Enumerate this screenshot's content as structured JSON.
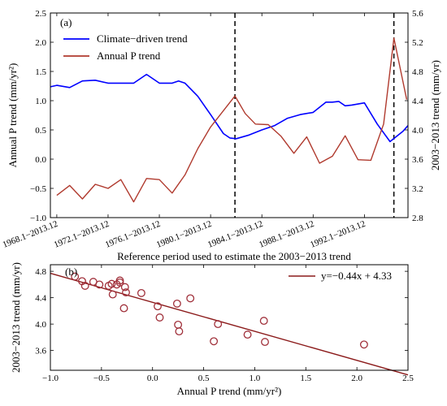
{
  "chart_data": [
    {
      "panel_label": "(a)",
      "type": "line",
      "xlabel": "Reference period used to estimate the 2003−2013 trend",
      "ylabel_left": "Annual P trend (mm/yr²)",
      "ylabel_right": "2003−2013 trend (mm/yr)",
      "ylim_left": [
        -1.0,
        2.5
      ],
      "ylim_right": [
        2.8,
        5.6
      ],
      "yticks_left": [
        "−1.0",
        "−0.5",
        "0.0",
        "0.5",
        "1.0",
        "1.5",
        "2.0",
        "2.5"
      ],
      "yticks_right": [
        "2.8",
        "3.2",
        "3.6",
        "4.0",
        "4.4",
        "4.8",
        "5.2",
        "5.6"
      ],
      "xlim": [
        1967.5,
        1995.4
      ],
      "xticks": [
        {
          "x": 1968,
          "label": "1968.1−2013.12"
        },
        {
          "x": 1972,
          "label": "1972.1−2013.12"
        },
        {
          "x": 1976,
          "label": "1976.1−2013.12"
        },
        {
          "x": 1980,
          "label": "1980.1−2013.12"
        },
        {
          "x": 1984,
          "label": "1984.1−2013.12"
        },
        {
          "x": 1988,
          "label": "1988.1−2013.12"
        },
        {
          "x": 1992,
          "label": "1992.1−2013.12"
        }
      ],
      "vlines": [
        1981.9,
        1994.3
      ],
      "legend_position": "upper-left",
      "series": [
        {
          "name": "Climate−driven trend",
          "axis": "right",
          "color": "#0000ff",
          "x": [
            1967.5,
            1968,
            1969,
            1970,
            1971,
            1972,
            1973,
            1974,
            1974.5,
            1975,
            1976,
            1977,
            1977.5,
            1978,
            1979,
            1980,
            1981,
            1981.5,
            1982,
            1983,
            1984,
            1985,
            1986,
            1987,
            1988,
            1989,
            1989.5,
            1990,
            1990.5,
            1991,
            1992,
            1993,
            1994,
            1995,
            1995.4
          ],
          "y": [
            4.59,
            4.61,
            4.58,
            4.67,
            4.68,
            4.64,
            4.64,
            4.64,
            4.7,
            4.76,
            4.64,
            4.64,
            4.67,
            4.64,
            4.46,
            4.21,
            3.95,
            3.89,
            3.88,
            3.93,
            4.0,
            4.06,
            4.16,
            4.21,
            4.24,
            4.38,
            4.38,
            4.39,
            4.33,
            4.34,
            4.37,
            4.08,
            3.84,
            3.98,
            4.06
          ]
        },
        {
          "name": "Annual P trend",
          "axis": "left",
          "color": "#b03a2e",
          "x": [
            1968,
            1969,
            1970,
            1971,
            1972,
            1973,
            1974,
            1975,
            1976,
            1977,
            1978,
            1979,
            1980,
            1981.9,
            1982.7,
            1983.5,
            1984.5,
            1985.5,
            1986.5,
            1987.5,
            1988.5,
            1989.5,
            1990.5,
            1991.5,
            1992.5,
            1993.5,
            1994.3,
            1995.3
          ],
          "y": [
            -0.62,
            -0.45,
            -0.68,
            -0.43,
            -0.5,
            -0.35,
            -0.73,
            -0.33,
            -0.35,
            -0.58,
            -0.27,
            0.18,
            0.55,
            1.08,
            0.78,
            0.6,
            0.59,
            0.39,
            0.1,
            0.38,
            -0.07,
            0.05,
            0.4,
            -0.01,
            -0.02,
            0.6,
            2.07,
            1.02
          ]
        }
      ]
    },
    {
      "panel_label": "(b)",
      "type": "scatter",
      "xlabel": "Annual P trend (mm/yr²)",
      "ylabel": "2003−2013 trend (mm/yr)",
      "xlim": [
        -1.0,
        2.5
      ],
      "ylim": [
        3.3,
        4.9
      ],
      "xticks": [
        "−1.0",
        "−0.5",
        "0.0",
        "0.5",
        "1.0",
        "1.5",
        "2.0",
        "2.5"
      ],
      "yticks": [
        "3.6",
        "4.0",
        "4.4",
        "4.8"
      ],
      "legend_position": "upper-right",
      "fit": {
        "label": "y=−0.44x + 4.33",
        "slope": -0.44,
        "intercept": 4.33,
        "color": "#8b1a1a"
      },
      "marker_color": "#a0303a",
      "points": [
        [
          -0.76,
          4.72
        ],
        [
          -0.69,
          4.65
        ],
        [
          -0.66,
          4.58
        ],
        [
          -0.58,
          4.64
        ],
        [
          -0.52,
          4.6
        ],
        [
          -0.43,
          4.58
        ],
        [
          -0.4,
          4.61
        ],
        [
          -0.39,
          4.45
        ],
        [
          -0.35,
          4.6
        ],
        [
          -0.32,
          4.63
        ],
        [
          -0.32,
          4.66
        ],
        [
          -0.27,
          4.56
        ],
        [
          -0.26,
          4.48
        ],
        [
          -0.28,
          4.24
        ],
        [
          -0.11,
          4.47
        ],
        [
          0.05,
          4.27
        ],
        [
          0.07,
          4.1
        ],
        [
          0.24,
          4.31
        ],
        [
          0.25,
          3.99
        ],
        [
          0.26,
          3.89
        ],
        [
          0.37,
          4.39
        ],
        [
          0.6,
          3.74
        ],
        [
          0.64,
          4.0
        ],
        [
          0.93,
          3.84
        ],
        [
          1.09,
          4.05
        ],
        [
          1.1,
          3.73
        ],
        [
          2.07,
          3.69
        ]
      ]
    }
  ]
}
